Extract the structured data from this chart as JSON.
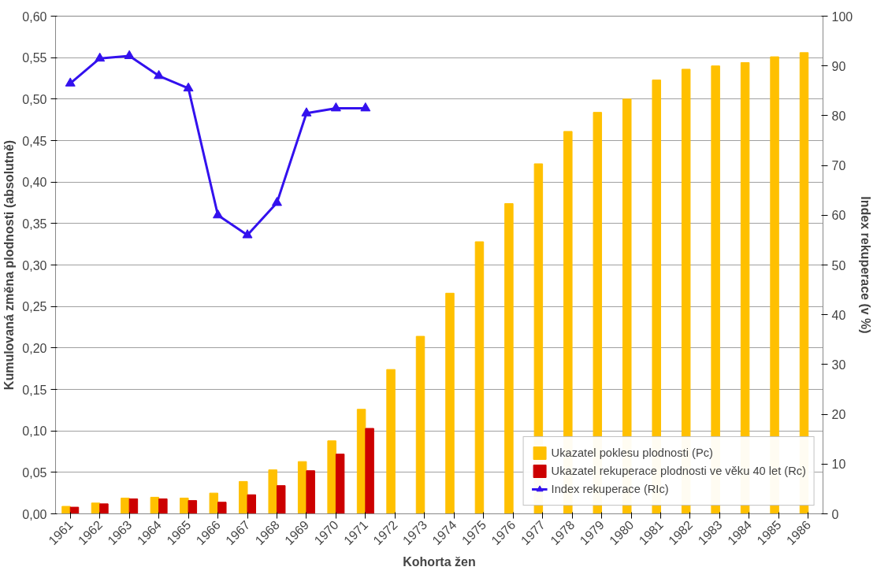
{
  "chart_data": {
    "type": "bar",
    "xlabel": "Kohorta žen",
    "ylabel": "Kumulovaná změna plodnosti (absolutně)",
    "y2label": "Index rekuperace (v %)",
    "categories": [
      "1961",
      "1962",
      "1963",
      "1964",
      "1965",
      "1966",
      "1967",
      "1968",
      "1969",
      "1970",
      "1971",
      "1972",
      "1973",
      "1974",
      "1975",
      "1976",
      "1977",
      "1978",
      "1979",
      "1980",
      "1981",
      "1982",
      "1983",
      "1984",
      "1985",
      "1986"
    ],
    "series": [
      {
        "name": "Ukazatel poklesu plodnosti (Pc)",
        "color": "#ffc000",
        "values": [
          0.009,
          0.013,
          0.019,
          0.02,
          0.019,
          0.025,
          0.039,
          0.053,
          0.063,
          0.088,
          0.126,
          0.174,
          0.214,
          0.266,
          0.328,
          0.374,
          0.422,
          0.461,
          0.484,
          0.5,
          0.523,
          0.536,
          0.54,
          0.544,
          0.551,
          0.556
        ]
      },
      {
        "name": "Ukazatel rekuperace plodnosti ve věku 40 let (Rc)",
        "color": "#cc0000",
        "values": [
          0.008,
          0.012,
          0.018,
          0.018,
          0.016,
          0.014,
          0.023,
          0.034,
          0.052,
          0.072,
          0.103,
          null,
          null,
          null,
          null,
          null,
          null,
          null,
          null,
          null,
          null,
          null,
          null,
          null,
          null,
          null
        ]
      },
      {
        "name": "Index rekuperace (RIc)",
        "color": "#3311ee",
        "type": "line",
        "axis": "y2",
        "marker": "triangle",
        "values": [
          86.5,
          91.5,
          92,
          88,
          85.5,
          60,
          56,
          62.5,
          80.5,
          81.5,
          81.5,
          null,
          null,
          null,
          null,
          null,
          null,
          null,
          null,
          null,
          null,
          null,
          null,
          null,
          null,
          null
        ]
      }
    ],
    "ylim": [
      0,
      0.6
    ],
    "yticks": [
      {
        "value": 0,
        "label": "0,00"
      },
      {
        "value": 0.05,
        "label": "0,05"
      },
      {
        "value": 0.1,
        "label": "0,10"
      },
      {
        "value": 0.15,
        "label": "0,15"
      },
      {
        "value": 0.2,
        "label": "0,20"
      },
      {
        "value": 0.25,
        "label": "0,25"
      },
      {
        "value": 0.3,
        "label": "0,30"
      },
      {
        "value": 0.35,
        "label": "0,35"
      },
      {
        "value": 0.4,
        "label": "0,40"
      },
      {
        "value": 0.45,
        "label": "0,45"
      },
      {
        "value": 0.5,
        "label": "0,50"
      },
      {
        "value": 0.55,
        "label": "0,55"
      },
      {
        "value": 0.6,
        "label": "0,60"
      }
    ],
    "y2lim": [
      0,
      100
    ],
    "y2ticks": [
      0,
      10,
      20,
      30,
      40,
      50,
      60,
      70,
      80,
      90,
      100
    ],
    "grid": "y",
    "legend": "bottom right"
  }
}
